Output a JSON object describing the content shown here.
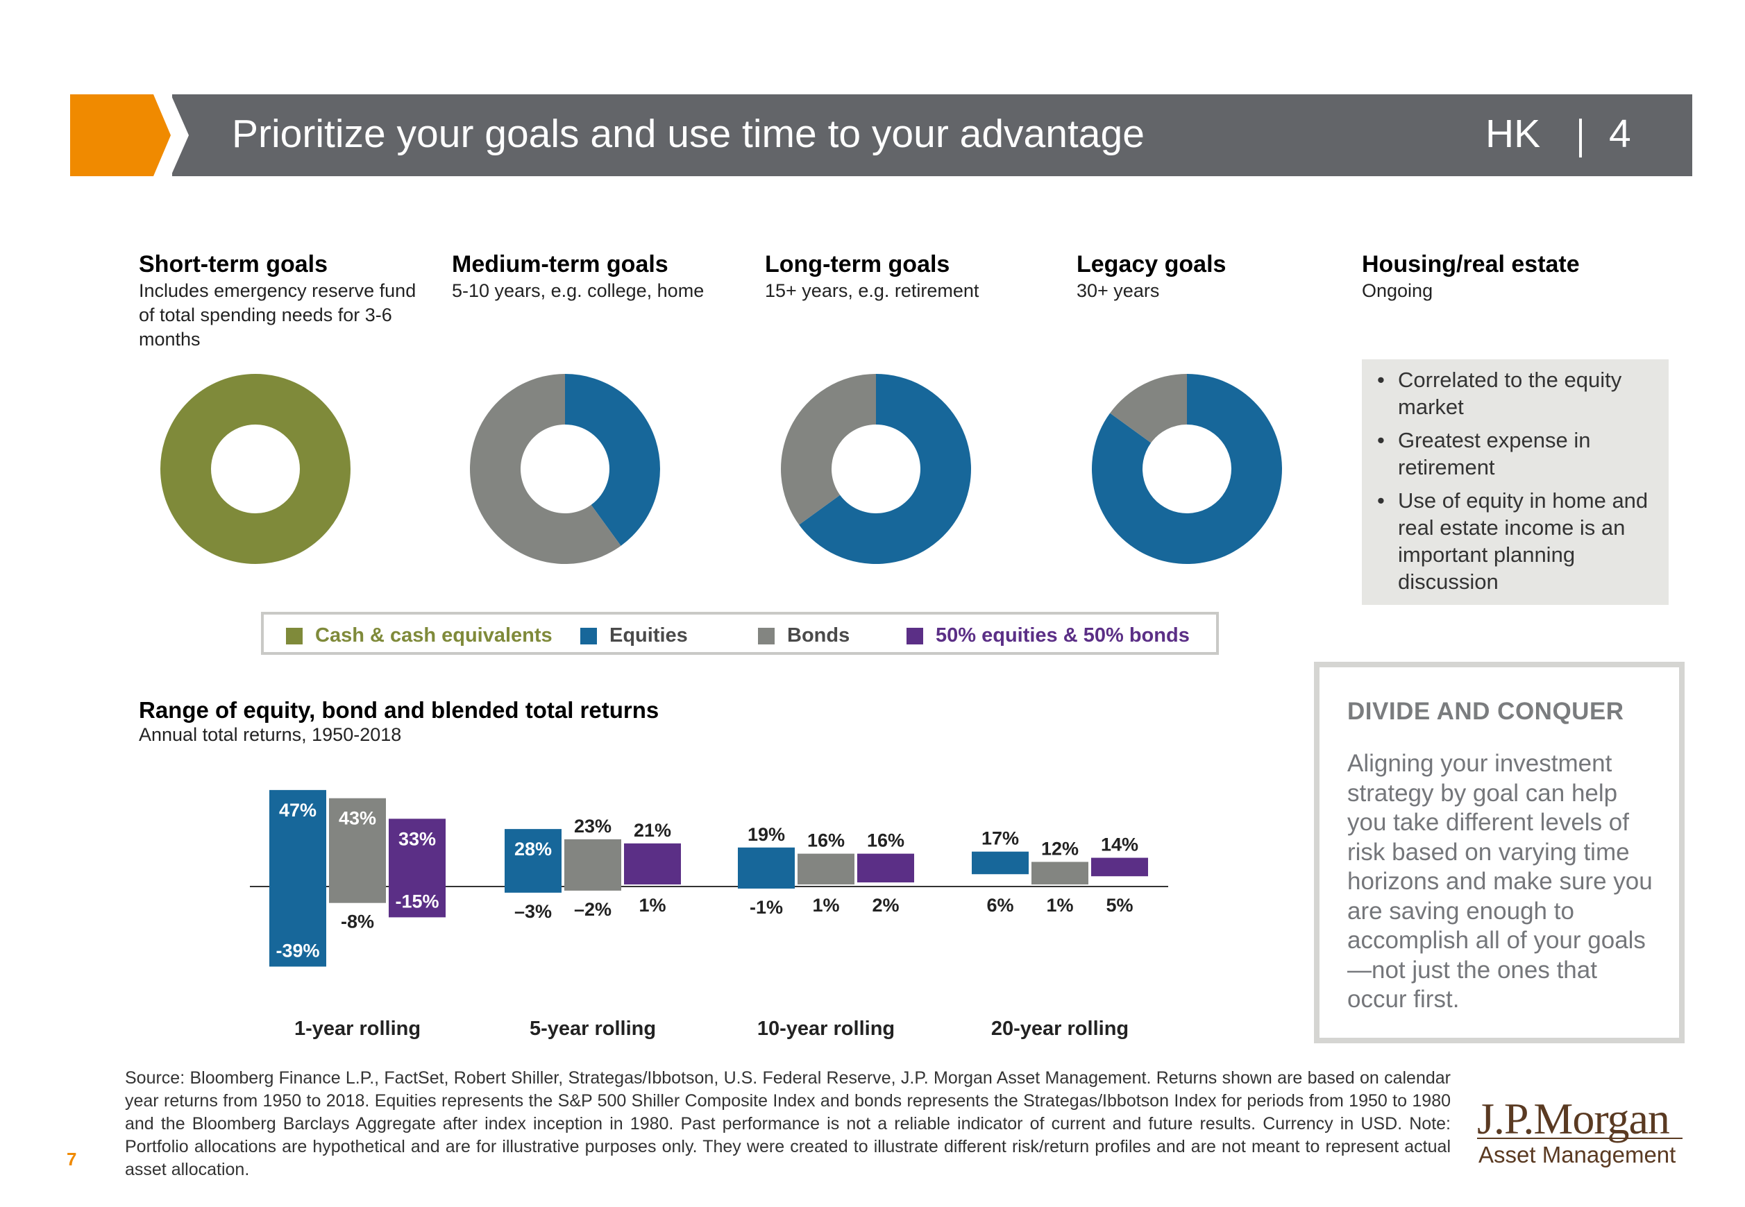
{
  "header": {
    "title": "Prioritize your goals and use time to your advantage",
    "region": "HK",
    "page_number": "4",
    "bar_color": "#636569",
    "accent_color": "#f08a00"
  },
  "goals": [
    {
      "title": "Short-term goals",
      "description": "Includes emergency reserve fund of total spending needs for 3-6 months"
    },
    {
      "title": "Medium-term goals",
      "description": "5-10 years, e.g. college, home"
    },
    {
      "title": "Long-term goals",
      "description": "15+ years, e.g. retirement"
    },
    {
      "title": "Legacy goals",
      "description": "30+ years"
    },
    {
      "title": "Housing/real estate",
      "description": "Ongoing"
    }
  ],
  "housing_bullets": [
    "Correlated to the equity market",
    "Greatest expense in retirement",
    "Use of equity in home and real estate income is an important planning discussion"
  ],
  "legend": [
    {
      "label": "Cash & cash equivalents",
      "color": "#7f8a3a"
    },
    {
      "label": "Equities",
      "color": "#17679a"
    },
    {
      "label": "Bonds",
      "color": "#838581"
    },
    {
      "label": "50% equities & 50% bonds",
      "color": "#5b2f86"
    }
  ],
  "returns_chart": {
    "title": "Range of equity, bond and blended total returns",
    "subtitle": "Annual total returns, 1950-2018"
  },
  "callout": {
    "title": "DIVIDE AND CONQUER",
    "body": "Aligning your investment strategy by goal can help you take different levels of risk based on varying time horizons and make sure you are saving enough to accomplish all of your goals—not just the ones that occur first."
  },
  "source_note": "Source: Bloomberg Finance L.P., FactSet, Robert Shiller, Strategas/Ibbotson, U.S. Federal Reserve, J.P. Morgan Asset Management. Returns shown are based on calendar year returns from 1950 to 2018. Equities represents the S&P 500 Shiller Composite Index and bonds represents the Strategas/Ibbotson Index for periods from 1950 to 1980 and the Bloomberg Barclays Aggregate after index inception in 1980. Past performance is not a reliable indicator of current and future results. Currency in USD. Note: Portfolio allocations are hypothetical and are for illustrative purposes only. They were created to illustrate different risk/return profiles and are not meant to represent actual asset allocation.",
  "footer": {
    "page": "7",
    "logo_main": "J.P.Morgan",
    "logo_sub": "Asset Management"
  },
  "chart_data": [
    {
      "type": "pie",
      "goal": "Short-term goals",
      "slices": [
        {
          "label": "Cash & cash equivalents",
          "value": 100,
          "color": "#7f8a3a"
        }
      ]
    },
    {
      "type": "pie",
      "goal": "Medium-term goals",
      "slices": [
        {
          "label": "Equities",
          "value": 40,
          "color": "#17679a"
        },
        {
          "label": "Bonds",
          "value": 60,
          "color": "#838581"
        }
      ]
    },
    {
      "type": "pie",
      "goal": "Long-term goals",
      "slices": [
        {
          "label": "Equities",
          "value": 65,
          "color": "#17679a"
        },
        {
          "label": "Bonds",
          "value": 35,
          "color": "#838581"
        }
      ]
    },
    {
      "type": "pie",
      "goal": "Legacy goals",
      "slices": [
        {
          "label": "Equities",
          "value": 85,
          "color": "#17679a"
        },
        {
          "label": "Bonds",
          "value": 15,
          "color": "#838581"
        }
      ]
    },
    {
      "type": "bar",
      "title": "Range of equity, bond and blended total returns",
      "subtitle": "Annual total returns, 1950-2018",
      "categories": [
        "1-year rolling",
        "5-year rolling",
        "10-year rolling",
        "20-year rolling"
      ],
      "series": [
        {
          "name": "Equities",
          "color": "#17679a",
          "max": [
            47,
            28,
            19,
            17
          ],
          "min": [
            -39,
            -3,
            -1,
            6
          ],
          "max_labels": [
            "47%",
            "28%",
            "19%",
            "17%"
          ],
          "min_labels": [
            "-39%",
            "–3%",
            "-1%",
            "6%"
          ]
        },
        {
          "name": "Bonds",
          "color": "#838581",
          "max": [
            43,
            23,
            16,
            12
          ],
          "min": [
            -8,
            -2,
            1,
            1
          ],
          "max_labels": [
            "43%",
            "23%",
            "16%",
            "12%"
          ],
          "min_labels": [
            "-8%",
            "–2%",
            "1%",
            "1%"
          ]
        },
        {
          "name": "50% equities & 50% bonds",
          "color": "#5b2f86",
          "max": [
            33,
            21,
            16,
            14
          ],
          "min": [
            -15,
            1,
            2,
            5
          ],
          "max_labels": [
            "33%",
            "21%",
            "16%",
            "14%"
          ],
          "min_labels": [
            "-15%",
            "1%",
            "2%",
            "5%"
          ]
        }
      ],
      "ylim": [
        -40,
        48
      ]
    }
  ]
}
